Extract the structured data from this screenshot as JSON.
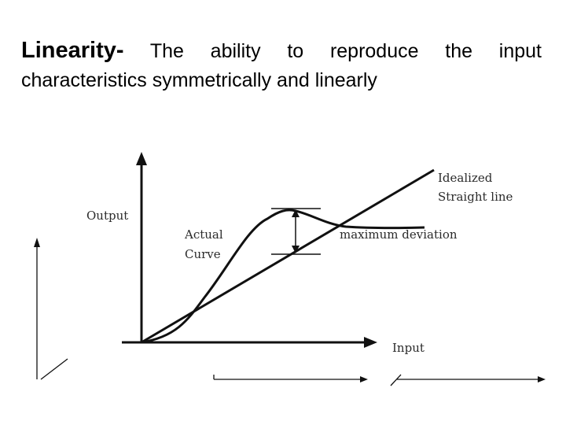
{
  "heading": {
    "term": "Linearity-",
    "line1_rest": "The ability to reproduce the input",
    "line2": "characteristics symmetrically and linearly"
  },
  "diagram": {
    "output_label": "Output",
    "input_label": "Input",
    "actual_curve_label_line1": "Actual",
    "actual_curve_label_line2": "Curve",
    "idealized_label_line1": "Idealized",
    "idealized_label_line2": "Straight line",
    "deviation_label": "maximum deviation"
  }
}
